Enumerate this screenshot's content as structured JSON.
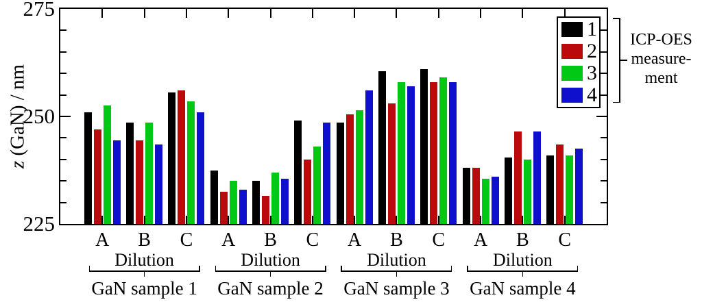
{
  "chart_data": {
    "type": "bar",
    "title": "",
    "ylabel": "z (GaN) / nm",
    "ylabel_symbol": "z",
    "ylabel_rest": " (GaN) / nm",
    "ylim": [
      225,
      275
    ],
    "yticks": [
      {
        "label": "275",
        "value": 275
      },
      {
        "label": "250",
        "value": 250
      },
      {
        "label": "225",
        "value": 225
      }
    ],
    "minor_tick_step": 5,
    "grid": "off",
    "axis_color": "#000000",
    "background_color": "#ffffff",
    "legend_position": "top-right-inside",
    "series": [
      {
        "name": "1",
        "color": "#000000"
      },
      {
        "name": "2",
        "color": "#bb0a0e"
      },
      {
        "name": "3",
        "color": "#00c814"
      },
      {
        "name": "4",
        "color": "#0f0fce"
      }
    ],
    "legend_annotation": [
      "ICP-OES",
      "measure-",
      "ment"
    ],
    "samples": [
      {
        "label": "GaN sample 1",
        "dilution_label": "Dilution",
        "groups": [
          {
            "label": "A",
            "values": [
              251,
              247,
              252.5,
              244.5
            ]
          },
          {
            "label": "B",
            "values": [
              248.5,
              244.5,
              248.5,
              243.5
            ]
          },
          {
            "label": "C",
            "values": [
              255.5,
              256,
              253.5,
              251
            ]
          }
        ]
      },
      {
        "label": "GaN sample 2",
        "dilution_label": "Dilution",
        "groups": [
          {
            "label": "A",
            "values": [
              237.5,
              232.5,
              235,
              233
            ]
          },
          {
            "label": "B",
            "values": [
              235,
              231.5,
              237,
              235.5
            ]
          },
          {
            "label": "C",
            "values": [
              249,
              240,
              243,
              248.5
            ]
          }
        ]
      },
      {
        "label": "GaN sample 3",
        "dilution_label": "Dilution",
        "groups": [
          {
            "label": "A",
            "values": [
              248.5,
              250.5,
              251.5,
              256
            ]
          },
          {
            "label": "B",
            "values": [
              260.5,
              253,
              258,
              257
            ]
          },
          {
            "label": "C",
            "values": [
              261,
              258,
              259,
              258
            ]
          }
        ]
      },
      {
        "label": "GaN sample 4",
        "dilution_label": "Dilution",
        "groups": [
          {
            "label": "A",
            "values": [
              238,
              238,
              235.5,
              236
            ]
          },
          {
            "label": "B",
            "values": [
              240.5,
              246.5,
              240,
              246.5
            ]
          },
          {
            "label": "C",
            "values": [
              241,
              243.5,
              241,
              242.5
            ]
          }
        ]
      }
    ]
  }
}
